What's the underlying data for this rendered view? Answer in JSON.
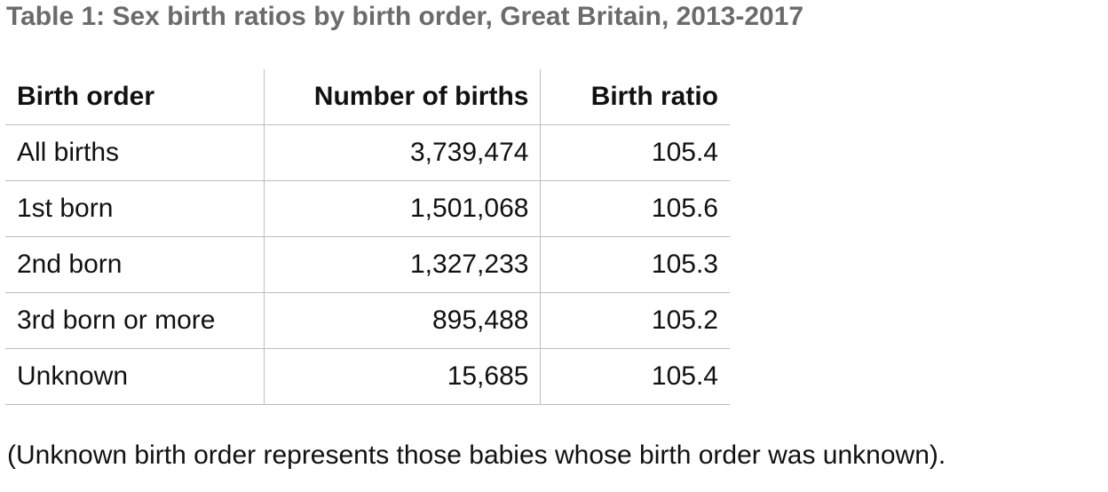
{
  "title": "Table 1: Sex birth ratios by birth order, Great Britain, 2013-2017",
  "note": "(Unknown birth order represents those babies whose birth order was unknown).",
  "chart_data": {
    "type": "table",
    "title": "Table 1: Sex birth ratios by birth order, Great Britain, 2013-2017",
    "columns": [
      "Birth order",
      "Number of births",
      "Birth ratio"
    ],
    "rows": [
      [
        "All births",
        "3,739,474",
        "105.4"
      ],
      [
        "1st born",
        "1,501,068",
        "105.6"
      ],
      [
        "2nd born",
        "1,327,233",
        "105.3"
      ],
      [
        "3rd born or more",
        "895,488",
        "105.2"
      ],
      [
        "Unknown",
        "15,685",
        "105.4"
      ]
    ]
  }
}
